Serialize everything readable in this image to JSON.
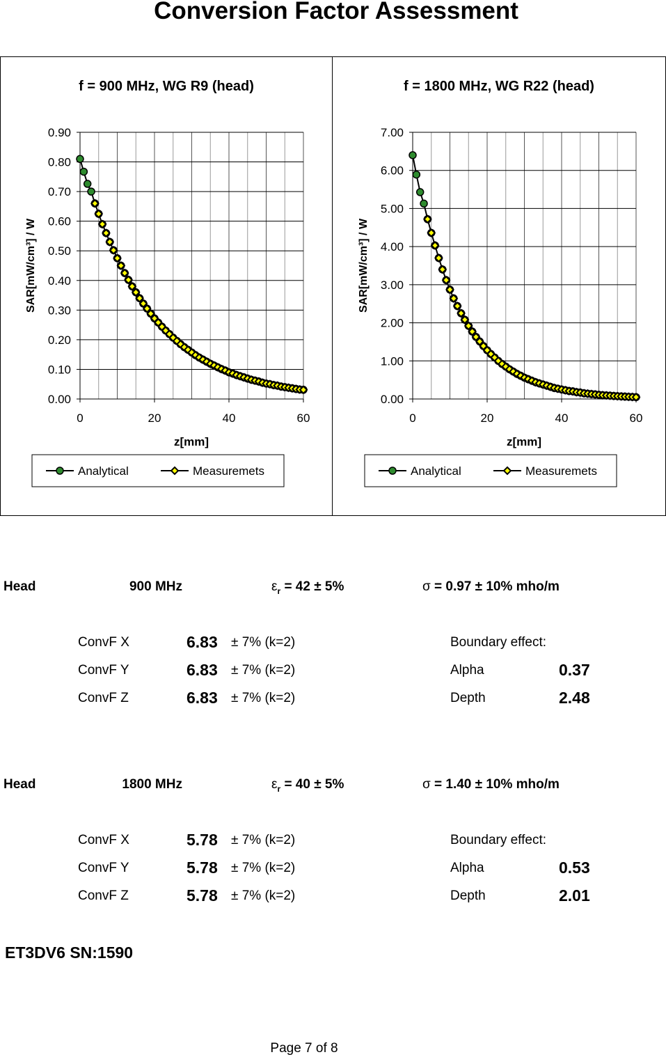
{
  "title": "Conversion Factor Assessment",
  "charts_common": {
    "xlabel": "z[mm]",
    "ylabel": "SAR[mW/cm³] / W",
    "legend": [
      "Analytical",
      "Measuremets"
    ],
    "colors": {
      "analytical": "#2e8b2e",
      "measurements": "#ffff00",
      "line": "#000000"
    }
  },
  "chart_data": [
    {
      "type": "line",
      "title": "f = 900 MHz, WG R9 (head)",
      "xlabel": "z[mm]",
      "ylabel": "SAR[mW/cm³] / W",
      "xlim": [
        0,
        60
      ],
      "ylim": [
        0,
        0.9
      ],
      "xticks": [
        "0",
        "20",
        "40",
        "60"
      ],
      "yticks": [
        "0.00",
        "0.10",
        "0.20",
        "0.30",
        "0.40",
        "0.50",
        "0.60",
        "0.70",
        "0.80",
        "0.90"
      ],
      "grid": true,
      "legend_position": "bottom",
      "x": [
        0,
        1,
        2,
        3,
        4,
        5,
        6,
        7,
        8,
        9,
        10,
        11,
        12,
        13,
        14,
        15,
        16,
        17,
        18,
        19,
        20,
        21,
        22,
        23,
        24,
        25,
        26,
        27,
        28,
        29,
        30,
        31,
        32,
        33,
        34,
        35,
        36,
        37,
        38,
        39,
        40,
        41,
        42,
        43,
        44,
        45,
        46,
        47,
        48,
        49,
        50,
        51,
        52,
        53,
        54,
        55,
        56,
        57,
        58,
        59,
        60
      ],
      "series": [
        {
          "name": "Analytical",
          "values": [
            0.81,
            0.767,
            0.726,
            0.7,
            0.66,
            0.625,
            0.59,
            0.56,
            0.53,
            0.502,
            0.475,
            0.45,
            0.425,
            0.402,
            0.38,
            0.36,
            0.34,
            0.322,
            0.305,
            0.288,
            0.272,
            0.258,
            0.244,
            0.231,
            0.219,
            0.207,
            0.196,
            0.185,
            0.175,
            0.166,
            0.157,
            0.148,
            0.14,
            0.133,
            0.126,
            0.119,
            0.113,
            0.107,
            0.101,
            0.096,
            0.09,
            0.086,
            0.081,
            0.077,
            0.073,
            0.069,
            0.065,
            0.062,
            0.059,
            0.055,
            0.052,
            0.05,
            0.047,
            0.045,
            0.042,
            0.04,
            0.038,
            0.036,
            0.034,
            0.032,
            0.031
          ]
        },
        {
          "name": "Measuremets",
          "values": [
            null,
            null,
            null,
            null,
            0.66,
            0.625,
            0.59,
            0.56,
            0.53,
            0.502,
            0.475,
            0.45,
            0.425,
            0.402,
            0.38,
            0.36,
            0.34,
            0.322,
            0.305,
            0.288,
            0.272,
            0.258,
            0.244,
            0.231,
            0.219,
            0.207,
            0.196,
            0.185,
            0.175,
            0.166,
            0.157,
            0.148,
            0.14,
            0.133,
            0.126,
            0.119,
            0.113,
            0.107,
            0.101,
            0.096,
            0.09,
            0.086,
            0.081,
            0.077,
            0.073,
            0.069,
            0.065,
            0.062,
            0.059,
            0.055,
            0.052,
            0.05,
            0.047,
            0.045,
            0.042,
            0.04,
            0.038,
            0.036,
            0.034,
            0.032,
            0.031
          ]
        }
      ]
    },
    {
      "type": "line",
      "title": "f = 1800 MHz, WG R22 (head)",
      "xlabel": "z[mm]",
      "ylabel": "SAR[mW/cm³] / W",
      "xlim": [
        0,
        60
      ],
      "ylim": [
        0,
        7
      ],
      "xticks": [
        "0",
        "20",
        "40",
        "60"
      ],
      "yticks": [
        "0.00",
        "1.00",
        "2.00",
        "3.00",
        "4.00",
        "5.00",
        "6.00",
        "7.00"
      ],
      "grid": true,
      "legend_position": "bottom",
      "x": [
        0,
        1,
        2,
        3,
        4,
        5,
        6,
        7,
        8,
        9,
        10,
        11,
        12,
        13,
        14,
        15,
        16,
        17,
        18,
        19,
        20,
        21,
        22,
        23,
        24,
        25,
        26,
        27,
        28,
        29,
        30,
        31,
        32,
        33,
        34,
        35,
        36,
        37,
        38,
        39,
        40,
        41,
        42,
        43,
        44,
        45,
        46,
        47,
        48,
        49,
        50,
        51,
        52,
        53,
        54,
        55,
        56,
        57,
        58,
        59,
        60
      ],
      "series": [
        {
          "name": "Analytical",
          "values": [
            6.4,
            5.89,
            5.43,
            5.13,
            4.72,
            4.36,
            4.03,
            3.7,
            3.4,
            3.12,
            2.87,
            2.64,
            2.44,
            2.25,
            2.08,
            1.92,
            1.77,
            1.63,
            1.51,
            1.39,
            1.28,
            1.18,
            1.09,
            1.0,
            0.92,
            0.85,
            0.78,
            0.72,
            0.66,
            0.61,
            0.56,
            0.52,
            0.48,
            0.44,
            0.41,
            0.38,
            0.35,
            0.32,
            0.29,
            0.27,
            0.25,
            0.23,
            0.21,
            0.2,
            0.18,
            0.17,
            0.15,
            0.14,
            0.13,
            0.12,
            0.11,
            0.1,
            0.094,
            0.087,
            0.08,
            0.074,
            0.068,
            0.063,
            0.058,
            0.053,
            0.049
          ]
        },
        {
          "name": "Measuremets",
          "values": [
            null,
            null,
            null,
            null,
            4.72,
            4.36,
            4.03,
            3.7,
            3.4,
            3.12,
            2.87,
            2.64,
            2.44,
            2.25,
            2.08,
            1.92,
            1.77,
            1.63,
            1.51,
            1.39,
            1.28,
            1.18,
            1.09,
            1.0,
            0.92,
            0.85,
            0.78,
            0.72,
            0.66,
            0.61,
            0.56,
            0.52,
            0.48,
            0.44,
            0.41,
            0.38,
            0.35,
            0.32,
            0.29,
            0.27,
            0.25,
            0.23,
            0.21,
            0.2,
            0.18,
            0.17,
            0.15,
            0.14,
            0.13,
            0.12,
            0.11,
            0.1,
            0.094,
            0.087,
            0.08,
            0.074,
            0.068,
            0.063,
            0.058,
            0.053,
            0.049
          ]
        }
      ]
    }
  ],
  "blocks": [
    {
      "medium": "Head",
      "freq": "900 MHz",
      "eps_sym": "ε",
      "eps_sub": "r",
      "eps_val": "= 42 ± 5%",
      "sigma_sym": "σ",
      "sigma_val": "= 0.97 ± 10% mho/m",
      "convf": [
        {
          "label": "ConvF X",
          "value": "6.83",
          "unc": "± 7% (k=2)"
        },
        {
          "label": "ConvF Y",
          "value": "6.83",
          "unc": "± 7% (k=2)"
        },
        {
          "label": "ConvF Z",
          "value": "6.83",
          "unc": "± 7% (k=2)"
        }
      ],
      "boundary_label": "Boundary effect:",
      "alpha_label": "Alpha",
      "alpha": "0.37",
      "depth_label": "Depth",
      "depth": "2.48"
    },
    {
      "medium": "Head",
      "freq": "1800 MHz",
      "eps_sym": "ε",
      "eps_sub": "r",
      "eps_val": "= 40 ± 5%",
      "sigma_sym": "σ",
      "sigma_val": "= 1.40 ± 10% mho/m",
      "convf": [
        {
          "label": "ConvF X",
          "value": "5.78",
          "unc": "± 7% (k=2)"
        },
        {
          "label": "ConvF Y",
          "value": "5.78",
          "unc": "± 7% (k=2)"
        },
        {
          "label": "ConvF Z",
          "value": "5.78",
          "unc": "± 7% (k=2)"
        }
      ],
      "boundary_label": "Boundary effect:",
      "alpha_label": "Alpha",
      "alpha": "0.53",
      "depth_label": "Depth",
      "depth": "2.01"
    }
  ],
  "probe": "ET3DV6 SN:1590",
  "footer": "Page 7 of 8"
}
